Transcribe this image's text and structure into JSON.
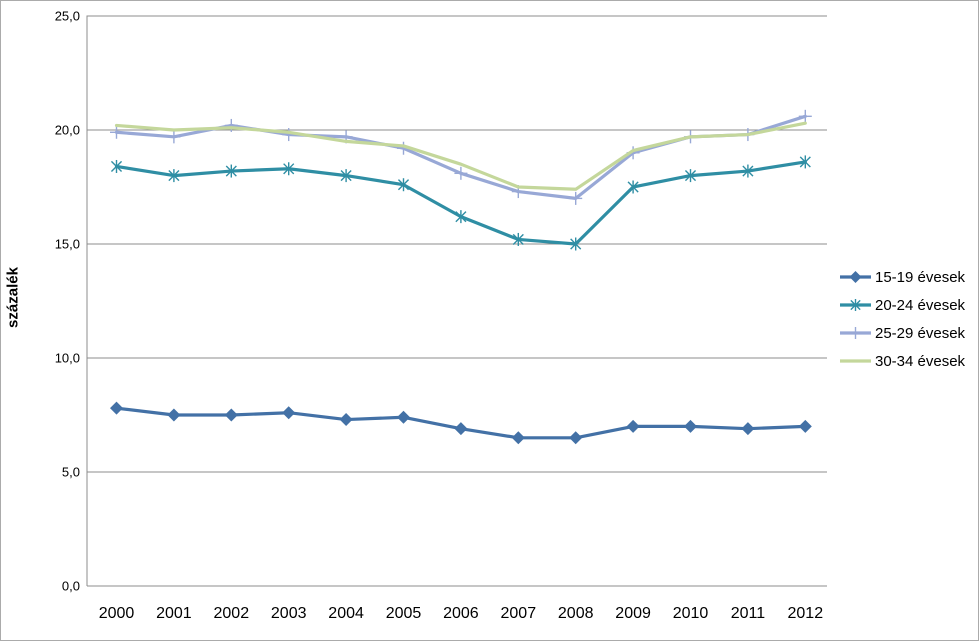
{
  "chart_data": {
    "type": "line",
    "title": "",
    "ylabel": "százalék",
    "xlabel": "",
    "categories": [
      "2000",
      "2001",
      "2002",
      "2003",
      "2004",
      "2005",
      "2006",
      "2007",
      "2008",
      "2009",
      "2010",
      "2011",
      "2012"
    ],
    "series": [
      {
        "name": "15-19 évesek",
        "color": "#4371A6",
        "marker": "diamond",
        "values": [
          7.8,
          7.5,
          7.5,
          7.6,
          7.3,
          7.4,
          6.9,
          6.5,
          6.5,
          7.0,
          7.0,
          6.9,
          7.0
        ]
      },
      {
        "name": "20-24 évesek",
        "color": "#2F8EA4",
        "marker": "asterisk",
        "values": [
          18.4,
          18.0,
          18.2,
          18.3,
          18.0,
          17.6,
          16.2,
          15.2,
          15.0,
          17.5,
          18.0,
          18.2,
          18.6
        ]
      },
      {
        "name": "25-29 évesek",
        "color": "#98A8D6",
        "marker": "plus",
        "values": [
          19.9,
          19.7,
          20.2,
          19.8,
          19.7,
          19.2,
          18.1,
          17.3,
          17.0,
          19.0,
          19.7,
          19.8,
          20.6
        ]
      },
      {
        "name": "30-34 évesek",
        "color": "#C4D79B",
        "marker": "none",
        "values": [
          20.2,
          20.0,
          20.1,
          19.9,
          19.5,
          19.3,
          18.5,
          17.5,
          17.4,
          19.1,
          19.7,
          19.8,
          20.3
        ]
      }
    ],
    "ylim": [
      0,
      25
    ],
    "ytick_step": 5,
    "ytick_labels": [
      "0,0",
      "5,0",
      "10,0",
      "15,0",
      "20,0",
      "25,0"
    ],
    "grid": "horizontal",
    "gridline_color": "#8c8c8c",
    "legend_position": "right"
  }
}
